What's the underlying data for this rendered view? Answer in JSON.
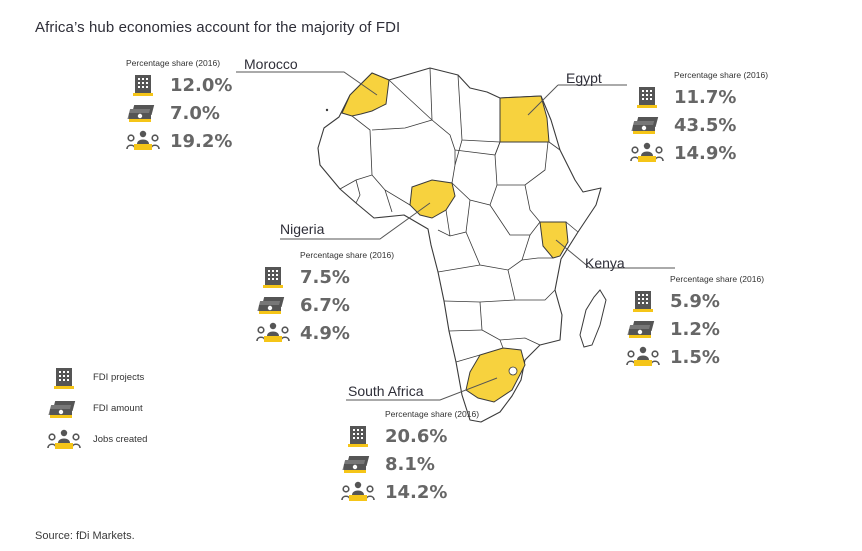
{
  "title": "Africa’s hub economies account for the majority of FDI",
  "source": "Source: fDi Markets.",
  "colors": {
    "highlight": "#f7d23e",
    "icon_dark": "#555555",
    "icon_accent": "#f5c518",
    "value_text": "#666666",
    "border": "#3a3a3a"
  },
  "legend": [
    {
      "icon": "building-icon",
      "label": "FDI projects"
    },
    {
      "icon": "money-icon",
      "label": "FDI amount"
    },
    {
      "icon": "people-icon",
      "label": "Jobs created"
    }
  ],
  "countries": {
    "morocco": {
      "name": "Morocco",
      "caption": "Percentage share (2016)",
      "projects": "12.0%",
      "amount": "7.0%",
      "jobs": "19.2%"
    },
    "egypt": {
      "name": "Egypt",
      "caption": "Percentage share (2016)",
      "projects": "11.7%",
      "amount": "43.5%",
      "jobs": "14.9%"
    },
    "nigeria": {
      "name": "Nigeria",
      "caption": "Percentage share (2016)",
      "projects": "7.5%",
      "amount": "6.7%",
      "jobs": "4.9%"
    },
    "kenya": {
      "name": "Kenya",
      "caption": "Percentage share (2016)",
      "projects": "5.9%",
      "amount": "1.2%",
      "jobs": "1.5%"
    },
    "south_africa": {
      "name": "South Africa",
      "caption": "Percentage share (2016)",
      "projects": "20.6%",
      "amount": "8.1%",
      "jobs": "14.2%"
    }
  }
}
